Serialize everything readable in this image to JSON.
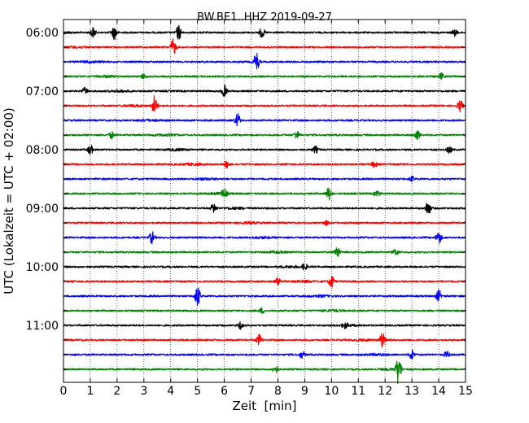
{
  "chart_data": {
    "type": "line",
    "title": "BW.BE1..HHZ 2019-09-27",
    "xlabel": "Zeit  [min]",
    "ylabel": "UTC (Lokalzeit = UTC + 02:00)",
    "xlim": [
      0,
      15
    ],
    "x_ticks": [
      "0",
      "1",
      "2",
      "3",
      "4",
      "5",
      "6",
      "7",
      "8",
      "9",
      "10",
      "11",
      "12",
      "13",
      "14",
      "15"
    ],
    "row_interval_minutes": 15,
    "row_labels": [
      "06:00",
      "",
      "",
      "",
      "07:00",
      "",
      "",
      "",
      "08:00",
      "",
      "",
      "",
      "09:00",
      "",
      "",
      "",
      "10:00",
      "",
      "",
      "",
      "11:00",
      "",
      "",
      ""
    ],
    "row_colors": [
      "#000000",
      "#ff0000",
      "#0000ff",
      "#008000"
    ],
    "grid": "vertical dotted",
    "series": [
      {
        "start": "06:00",
        "events": [
          [
            1.1,
            6
          ],
          [
            1.9,
            8
          ],
          [
            4.3,
            9
          ],
          [
            7.4,
            6
          ],
          [
            14.6,
            4
          ]
        ]
      },
      {
        "start": "06:15",
        "events": [
          [
            4.1,
            10
          ]
        ]
      },
      {
        "start": "06:30",
        "events": [
          [
            7.2,
            12
          ]
        ]
      },
      {
        "start": "06:45",
        "events": [
          [
            3.0,
            3
          ],
          [
            14.1,
            4
          ]
        ]
      },
      {
        "start": "07:00",
        "events": [
          [
            0.8,
            4
          ],
          [
            6.0,
            7
          ]
        ]
      },
      {
        "start": "07:15",
        "events": [
          [
            3.4,
            12
          ],
          [
            14.8,
            7
          ]
        ]
      },
      {
        "start": "07:30",
        "events": [
          [
            6.5,
            8
          ]
        ]
      },
      {
        "start": "07:45",
        "events": [
          [
            1.8,
            4
          ],
          [
            8.7,
            5
          ],
          [
            13.2,
            6
          ]
        ]
      },
      {
        "start": "08:00",
        "events": [
          [
            1.0,
            6
          ],
          [
            9.4,
            4
          ],
          [
            14.4,
            4
          ]
        ]
      },
      {
        "start": "08:15",
        "events": [
          [
            6.1,
            4
          ],
          [
            11.6,
            4
          ]
        ]
      },
      {
        "start": "08:30",
        "events": [
          [
            13.0,
            3
          ]
        ]
      },
      {
        "start": "08:45",
        "events": [
          [
            6.0,
            5
          ],
          [
            9.9,
            8
          ],
          [
            11.7,
            4
          ]
        ]
      },
      {
        "start": "09:00",
        "events": [
          [
            5.6,
            6
          ],
          [
            13.6,
            9
          ]
        ]
      },
      {
        "start": "09:15",
        "events": [
          [
            9.8,
            3
          ]
        ]
      },
      {
        "start": "09:30",
        "events": [
          [
            3.3,
            7
          ],
          [
            14.0,
            8
          ]
        ]
      },
      {
        "start": "09:45",
        "events": [
          [
            10.2,
            8
          ],
          [
            12.4,
            4
          ]
        ]
      },
      {
        "start": "10:00",
        "events": [
          [
            9.0,
            4
          ]
        ]
      },
      {
        "start": "10:15",
        "events": [
          [
            10.0,
            8
          ],
          [
            8.0,
            5
          ]
        ]
      },
      {
        "start": "10:30",
        "events": [
          [
            5.0,
            13
          ],
          [
            14.0,
            7
          ]
        ]
      },
      {
        "start": "10:45",
        "events": [
          [
            7.4,
            3
          ]
        ]
      },
      {
        "start": "11:00",
        "events": [
          [
            6.6,
            4
          ],
          [
            10.5,
            3
          ]
        ]
      },
      {
        "start": "11:15",
        "events": [
          [
            7.3,
            6
          ],
          [
            11.9,
            9
          ]
        ]
      },
      {
        "start": "11:30",
        "events": [
          [
            8.9,
            4
          ],
          [
            13.0,
            6
          ],
          [
            14.3,
            4
          ]
        ]
      },
      {
        "start": "11:45",
        "events": [
          [
            7.9,
            5
          ],
          [
            12.5,
            18
          ]
        ]
      }
    ]
  }
}
